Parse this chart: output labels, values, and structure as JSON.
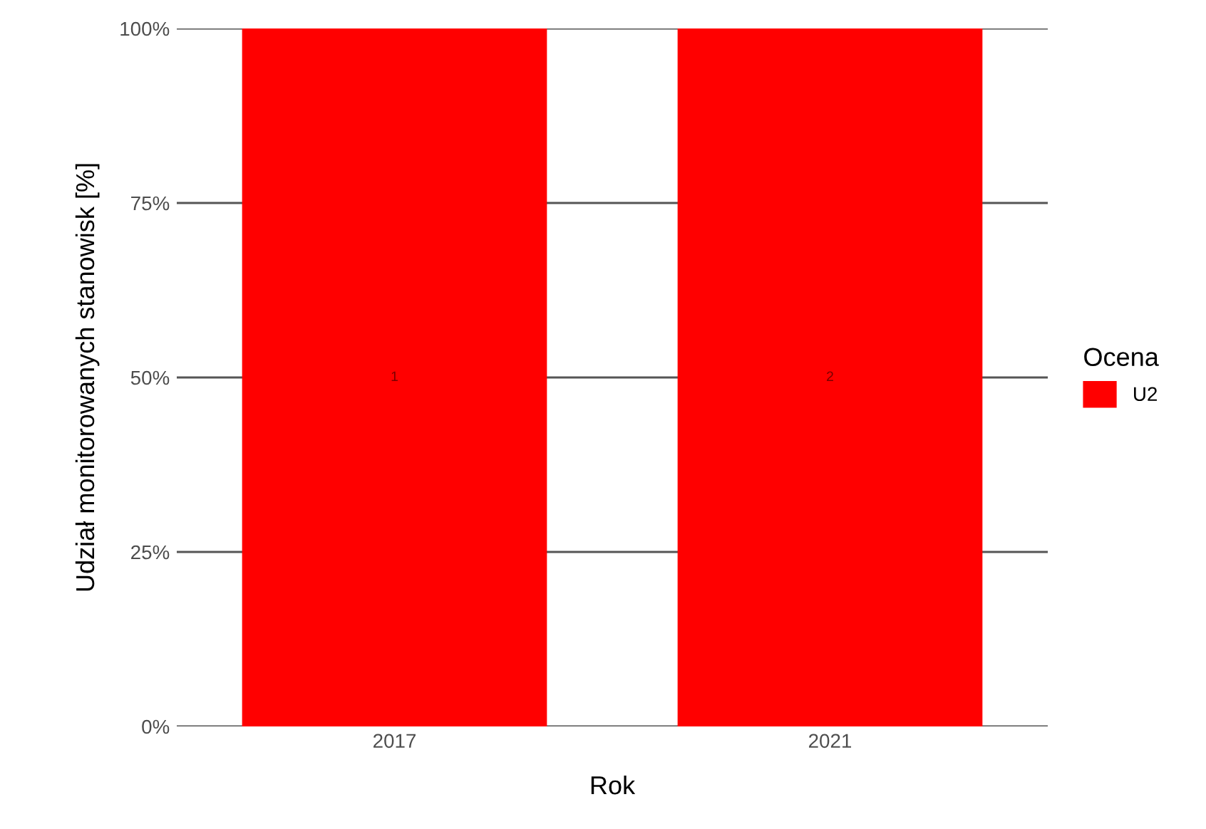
{
  "chart_data": {
    "type": "bar",
    "xlabel": "Rok",
    "ylabel": "Udział monitorowanych stanowisk [%]",
    "legend_title": "Ocena",
    "categories": [
      "2017",
      "2021"
    ],
    "series": [
      {
        "name": "U2",
        "color": "#ff0000",
        "values": [
          100,
          100
        ]
      }
    ],
    "annotations": [
      "1",
      "2"
    ],
    "ylim": [
      0,
      100
    ],
    "yticks": [
      {
        "value": 0,
        "label": "0%"
      },
      {
        "value": 25,
        "label": "25%"
      },
      {
        "value": 50,
        "label": "50%"
      },
      {
        "value": 75,
        "label": "75%"
      },
      {
        "value": 100,
        "label": "100%"
      }
    ],
    "grid": "y",
    "legend": "right"
  }
}
